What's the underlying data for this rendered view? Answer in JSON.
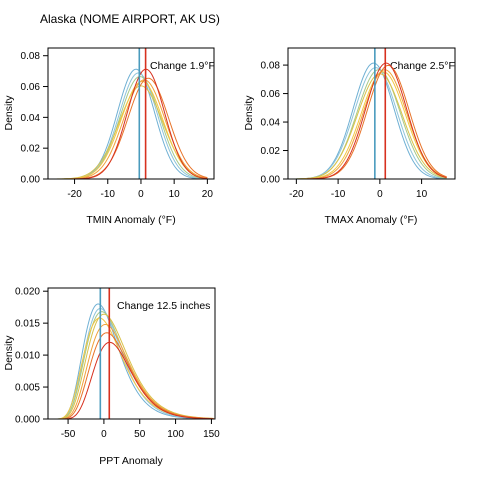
{
  "title": "Alaska (NOME AIRPORT, AK US)",
  "colors": {
    "baseline_line": "#4a9bbd",
    "change_line": "#d7311f",
    "curves": [
      "#6fb0d4",
      "#8fc4d9",
      "#a7c98a",
      "#d9c24a",
      "#f2c744",
      "#f0a23c",
      "#e8742a",
      "#d7311f"
    ]
  },
  "chart_data": [
    {
      "type": "line",
      "xlabel": "TMIN Anomaly (°F)",
      "ylabel": "Density",
      "xlim": [
        -28,
        22
      ],
      "ylim": [
        0,
        0.085
      ],
      "xticks": [
        -20,
        -10,
        0,
        10,
        20
      ],
      "yticks": [
        0.0,
        0.02,
        0.04,
        0.06,
        0.08
      ],
      "ytick_labels": [
        "0.00",
        "0.02",
        "0.04",
        "0.06",
        "0.08"
      ],
      "annotation": "Change 1.9°F",
      "vlines": [
        {
          "x": -0.5,
          "role": "baseline"
        },
        {
          "x": 1.4,
          "role": "change"
        }
      ],
      "curves": [
        {
          "dist": "normal",
          "mean": -1.5,
          "sd": 5.6
        },
        {
          "dist": "normal",
          "mean": -0.8,
          "sd": 5.8
        },
        {
          "dist": "normal",
          "mean": -0.3,
          "sd": 6.0
        },
        {
          "dist": "normal",
          "mean": 0.0,
          "sd": 6.6
        },
        {
          "dist": "normal",
          "mean": 0.3,
          "sd": 6.3
        },
        {
          "dist": "normal",
          "mean": 1.0,
          "sd": 6.2
        },
        {
          "dist": "normal",
          "mean": 2.2,
          "sd": 6.1
        },
        {
          "dist": "normal",
          "mean": 1.5,
          "sd": 5.6
        }
      ]
    },
    {
      "type": "line",
      "xlabel": "TMAX Anomaly (°F)",
      "ylabel": "Density",
      "xlim": [
        -22,
        18
      ],
      "ylim": [
        0,
        0.092
      ],
      "xticks": [
        -20,
        -10,
        0,
        10
      ],
      "yticks": [
        0.0,
        0.02,
        0.04,
        0.06,
        0.08
      ],
      "ytick_labels": [
        "0.00",
        "0.02",
        "0.04",
        "0.06",
        "0.08"
      ],
      "annotation": "Change 2.5°F",
      "vlines": [
        {
          "x": -1.2,
          "role": "baseline"
        },
        {
          "x": 1.3,
          "role": "change"
        }
      ],
      "curves": [
        {
          "dist": "normal",
          "mean": -1.5,
          "sd": 4.9
        },
        {
          "dist": "normal",
          "mean": -1.0,
          "sd": 5.1
        },
        {
          "dist": "normal",
          "mean": -0.3,
          "sd": 5.2
        },
        {
          "dist": "normal",
          "mean": 0.0,
          "sd": 5.4
        },
        {
          "dist": "normal",
          "mean": 0.8,
          "sd": 5.3
        },
        {
          "dist": "normal",
          "mean": 1.2,
          "sd": 5.2
        },
        {
          "dist": "normal",
          "mean": 2.0,
          "sd": 5.0
        },
        {
          "dist": "normal",
          "mean": 1.5,
          "sd": 4.9
        }
      ]
    },
    {
      "type": "line",
      "xlabel": "PPT Anomaly",
      "ylabel": "Density",
      "xlim": [
        -78,
        155
      ],
      "ylim": [
        0,
        0.0205
      ],
      "xticks": [
        -50,
        0,
        50,
        100,
        150
      ],
      "yticks": [
        0.0,
        0.005,
        0.01,
        0.015,
        0.02
      ],
      "ytick_labels": [
        "0.000",
        "0.005",
        "0.010",
        "0.015",
        "0.020"
      ],
      "annotation": "Change 12.5 inches",
      "vlines": [
        {
          "x": -5,
          "role": "baseline"
        },
        {
          "x": 7.5,
          "role": "change"
        }
      ],
      "curves": [
        {
          "dist": "lognormal",
          "mode": -8,
          "peak": 0.018,
          "sigma": 0.3
        },
        {
          "dist": "lognormal",
          "mode": -5,
          "peak": 0.0173,
          "sigma": 0.3
        },
        {
          "dist": "lognormal",
          "mode": -3,
          "peak": 0.0168,
          "sigma": 0.31
        },
        {
          "dist": "lognormal",
          "mode": 0,
          "peak": 0.0164,
          "sigma": 0.31
        },
        {
          "dist": "lognormal",
          "mode": -6,
          "peak": 0.0158,
          "sigma": 0.32
        },
        {
          "dist": "lognormal",
          "mode": 2,
          "peak": 0.0148,
          "sigma": 0.3
        },
        {
          "dist": "lognormal",
          "mode": 4,
          "peak": 0.0135,
          "sigma": 0.29
        },
        {
          "dist": "lognormal",
          "mode": 8,
          "peak": 0.012,
          "sigma": 0.27
        }
      ]
    }
  ]
}
